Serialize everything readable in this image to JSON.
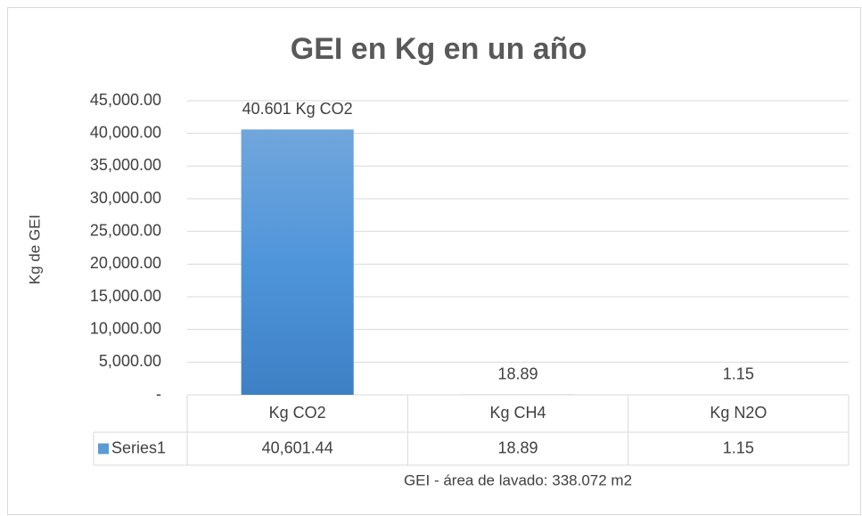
{
  "chart_data": {
    "type": "bar",
    "title": "GEI en Kg  en un año",
    "x_label": "GEI - área de lavado: 338.072 m2",
    "y_label": "Kg de GEI",
    "categories": [
      "Kg CO2",
      "Kg CH4",
      "Kg N2O"
    ],
    "series": [
      {
        "name": "Series1",
        "color": "#5b9bd5",
        "values": [
          40601.44,
          18.89,
          1.15
        ],
        "value_labels": [
          "40.601 Kg CO2",
          "18.89",
          "1.15"
        ],
        "table_labels": [
          "40,601.44",
          "18.89",
          "1.15"
        ]
      }
    ],
    "ylim": [
      0,
      45000
    ],
    "yticks": [
      {
        "value": 0,
        "label": "-"
      },
      {
        "value": 5000,
        "label": "5,000.00"
      },
      {
        "value": 10000,
        "label": "10,000.00"
      },
      {
        "value": 15000,
        "label": "15,000.00"
      },
      {
        "value": 20000,
        "label": "20,000.00"
      },
      {
        "value": 25000,
        "label": "25,000.00"
      },
      {
        "value": 30000,
        "label": "30,000.00"
      },
      {
        "value": 35000,
        "label": "35,000.00"
      },
      {
        "value": 40000,
        "label": "40,000.00"
      },
      {
        "value": 45000,
        "label": "45,000.00"
      }
    ],
    "grid": true,
    "data_table": true
  }
}
